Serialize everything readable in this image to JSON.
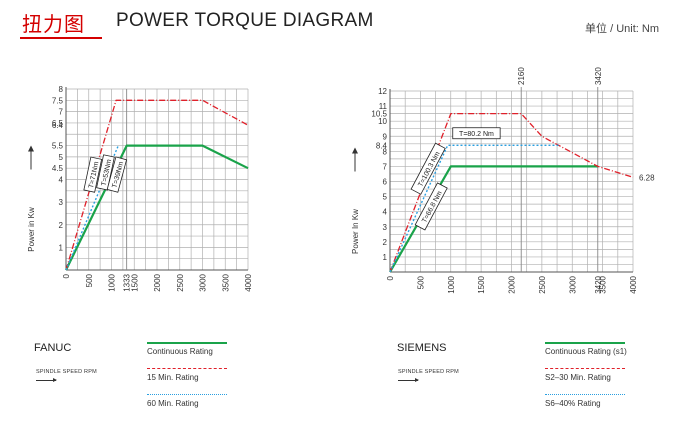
{
  "header": {
    "title_cn": "扭力图",
    "title_en": "POWER TORQUE DIAGRAM",
    "unit": "单位 / Unit: Nm"
  },
  "colors": {
    "continuous": "#1aa34a",
    "fifteen_min": "#e0202a",
    "sixty_min": "#2a9fe0",
    "grid": "#b0b0b0",
    "title": "#d40000"
  },
  "panels": {
    "fanuc": {
      "name": "FANUC",
      "speed_label": "SPINDLE SPEED RPM",
      "legend": [
        "Continuous Rating",
        "15 Min. Rating",
        "60 Min. Rating"
      ]
    },
    "siemens": {
      "name": "SIEMENS",
      "speed_label": "SPINDLE SPEED RPM",
      "legend": [
        "Continuous Rating (s1)",
        "S2–30 Min. Rating",
        "S6–40%  Rating"
      ]
    }
  },
  "chart_data": [
    {
      "type": "line",
      "ylabel": "Power in  Kw",
      "xlim": [
        0,
        4000
      ],
      "ylim": [
        0,
        8
      ],
      "grid": true,
      "x_ticks": [
        "0",
        "500",
        "1000",
        "1333",
        "1500",
        "2000",
        "2500",
        "3000",
        "3500",
        "4000"
      ],
      "y_ticks": [
        "1",
        "2",
        "3",
        "4",
        "4.5",
        "5",
        "5.5",
        "6.4",
        "6.5",
        "7",
        "7.5",
        "8"
      ],
      "series": [
        {
          "name": "Continuous Rating",
          "style": "solid",
          "points": [
            [
              0,
              0
            ],
            [
              1333,
              5.5
            ],
            [
              3000,
              5.5
            ],
            [
              4000,
              4.5
            ]
          ]
        },
        {
          "name": "15 Min. Rating",
          "style": "dashdot",
          "points": [
            [
              0,
              0
            ],
            [
              1100,
              7.5
            ],
            [
              3000,
              7.5
            ],
            [
              4000,
              6.4
            ]
          ]
        },
        {
          "name": "60 Min. Rating",
          "style": "dotted",
          "points": [
            [
              0,
              0
            ],
            [
              1150,
              5.5
            ]
          ]
        }
      ],
      "annotations": [
        "T=71Nm",
        "T=53Nm",
        "T=39Nm"
      ]
    },
    {
      "type": "line",
      "ylabel": "Power In  Kw",
      "xlim": [
        0,
        4000
      ],
      "ylim": [
        0,
        12
      ],
      "grid": true,
      "x_ticks": [
        "0",
        "500",
        "1000",
        "1500",
        "2000",
        "2500",
        "3000",
        "3420",
        "3500",
        "4000"
      ],
      "y_ticks": [
        "1",
        "2",
        "3",
        "4",
        "5",
        "6",
        "7",
        "8",
        "8.4",
        "9",
        "10",
        "10.5",
        "11",
        "12"
      ],
      "top_markers": [
        "2160",
        "3420"
      ],
      "series": [
        {
          "name": "Continuous Rating (s1)",
          "style": "solid",
          "points": [
            [
              0,
              0
            ],
            [
              1000,
              7
            ],
            [
              3420,
              7
            ]
          ]
        },
        {
          "name": "S2–30 Min. Rating",
          "style": "dashdot",
          "points": [
            [
              0,
              0
            ],
            [
              1000,
              10.5
            ],
            [
              2160,
              10.5
            ],
            [
              2500,
              9
            ],
            [
              3420,
              7
            ],
            [
              4000,
              6.28
            ]
          ]
        },
        {
          "name": "S6–40%  Rating",
          "style": "dotted",
          "points": [
            [
              0,
              0
            ],
            [
              950,
              8.4
            ],
            [
              2800,
              8.4
            ]
          ]
        }
      ],
      "annotations": [
        "T=80.2 Nm",
        "T=100.3 Nm",
        "T=66.8 Nm"
      ],
      "end_label": "6.28"
    }
  ]
}
